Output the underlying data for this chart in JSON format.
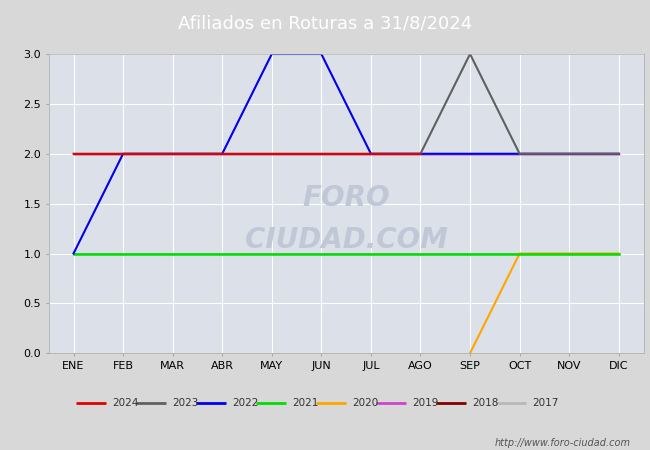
{
  "title": "Afiliados en Roturas a 31/8/2024",
  "title_bg_color": "#4a72c4",
  "title_text_color": "#ffffff",
  "fig_bg_color": "#d8d8d8",
  "plot_bg_color": "#dce0e8",
  "months": [
    "ENE",
    "FEB",
    "MAR",
    "ABR",
    "MAY",
    "JUN",
    "JUL",
    "AGO",
    "SEP",
    "OCT",
    "NOV",
    "DIC"
  ],
  "month_indices": [
    1,
    2,
    3,
    4,
    5,
    6,
    7,
    8,
    9,
    10,
    11,
    12
  ],
  "ylim": [
    0.0,
    3.0
  ],
  "yticks": [
    0.0,
    0.5,
    1.0,
    1.5,
    2.0,
    2.5,
    3.0
  ],
  "series": [
    {
      "label": "2024",
      "color": "#e00000",
      "x": [
        1,
        2,
        3,
        4,
        5,
        6,
        7,
        8
      ],
      "y": [
        2,
        2,
        2,
        2,
        2,
        2,
        2,
        2
      ],
      "lw": 1.5
    },
    {
      "label": "2023",
      "color": "#606060",
      "x": [
        1,
        2,
        3,
        4,
        5,
        6,
        7,
        8,
        9,
        10,
        11,
        12
      ],
      "y": [
        2,
        2,
        2,
        2,
        2,
        2,
        2,
        2,
        3,
        2,
        2,
        2
      ],
      "lw": 1.5
    },
    {
      "label": "2022",
      "color": "#0000ee",
      "x": [
        1,
        2,
        3,
        4,
        5,
        6,
        7,
        8,
        9,
        10,
        11,
        12
      ],
      "y": [
        1,
        2,
        2,
        2,
        3,
        3,
        2,
        2,
        2,
        2,
        2,
        2
      ],
      "lw": 1.5
    },
    {
      "label": "2021",
      "color": "#00dd00",
      "x": [
        1,
        2,
        3,
        4,
        5,
        6,
        7,
        8,
        9,
        10,
        11,
        12
      ],
      "y": [
        1,
        1,
        1,
        1,
        1,
        1,
        1,
        1,
        1,
        1,
        1,
        1
      ],
      "lw": 1.8
    },
    {
      "label": "2020",
      "color": "#ffa500",
      "x": [
        9,
        10,
        11,
        12
      ],
      "y": [
        0,
        1,
        1,
        1
      ],
      "lw": 1.5
    },
    {
      "label": "2019",
      "color": "#cc44cc",
      "x": [
        1,
        12
      ],
      "y": [
        2,
        2
      ],
      "lw": 1.0
    },
    {
      "label": "2018",
      "color": "#800000",
      "x": [
        1,
        12
      ],
      "y": [
        2,
        2
      ],
      "lw": 1.0
    },
    {
      "label": "2017",
      "color": "#b8b8b8",
      "x": [
        1,
        2,
        3,
        4,
        5,
        6,
        7,
        8,
        9,
        10,
        11,
        12
      ],
      "y": [
        1,
        1,
        1,
        1,
        1,
        1,
        1,
        1,
        1,
        1,
        1,
        1
      ],
      "lw": 1.5
    }
  ],
  "watermark_lines": [
    "FORO",
    "CIUDAD.COM"
  ],
  "watermark_color": "#c0c8d8",
  "url": "http://www.foro-ciudad.com",
  "grid_color": "#ffffff",
  "tick_fontsize": 8,
  "legend_border_color": "#888888",
  "legend_bg_color": "#e0e0e0"
}
